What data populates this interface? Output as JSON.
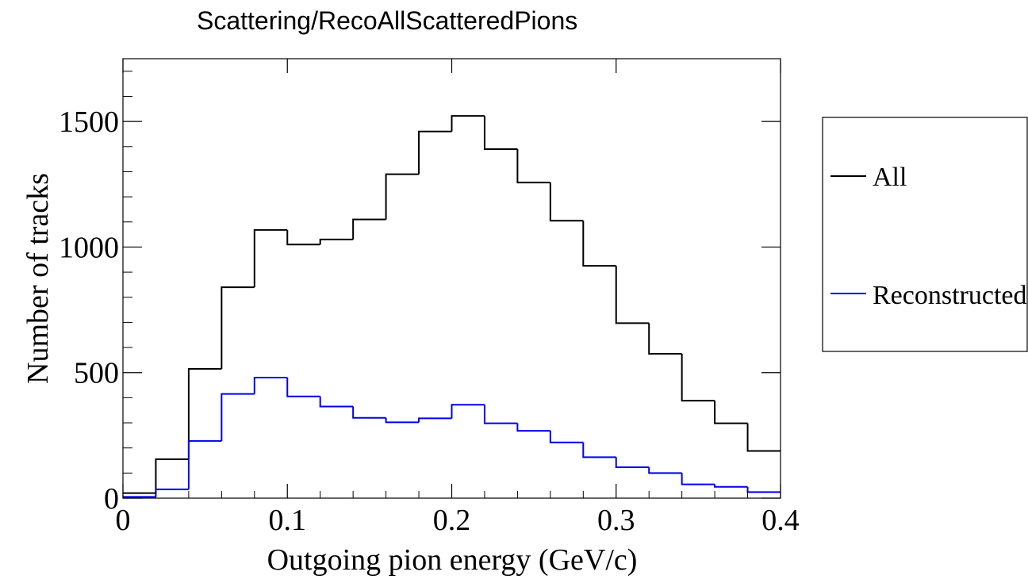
{
  "chart_data": {
    "type": "histogram",
    "title": "Scattering/RecoAllScatteredPions",
    "xlabel": "Outgoing pion energy (GeV/c)",
    "ylabel": "Number of tracks",
    "xlim": [
      0,
      0.4
    ],
    "ylim": [
      0,
      1750
    ],
    "grid": false,
    "legend_position": "right, outside plot",
    "bin_edges": [
      0,
      0.02,
      0.04,
      0.06,
      0.08,
      0.1,
      0.12,
      0.14,
      0.16,
      0.18,
      0.2,
      0.22,
      0.24,
      0.26,
      0.28,
      0.3,
      0.32,
      0.34,
      0.36,
      0.38,
      0.4
    ],
    "x_ticks": [
      {
        "value": 0,
        "label": "0"
      },
      {
        "value": 0.1,
        "label": "0.1"
      },
      {
        "value": 0.2,
        "label": "0.2"
      },
      {
        "value": 0.3,
        "label": "0.3"
      },
      {
        "value": 0.4,
        "label": "0.4"
      }
    ],
    "y_ticks": [
      {
        "value": 0,
        "label": "0"
      },
      {
        "value": 500,
        "label": "500"
      },
      {
        "value": 1000,
        "label": "1000"
      },
      {
        "value": 1500,
        "label": "1500"
      }
    ],
    "series": [
      {
        "name": "All",
        "color": "#000000",
        "values": [
          20,
          155,
          515,
          840,
          1068,
          1010,
          1030,
          1110,
          1290,
          1460,
          1522,
          1390,
          1257,
          1105,
          925,
          697,
          575,
          388,
          298,
          188
        ]
      },
      {
        "name": "Reconstructed",
        "color": "#0000ee",
        "values": [
          5,
          35,
          228,
          415,
          480,
          405,
          365,
          320,
          302,
          318,
          372,
          298,
          268,
          222,
          163,
          123,
          100,
          55,
          45,
          24
        ]
      }
    ]
  }
}
